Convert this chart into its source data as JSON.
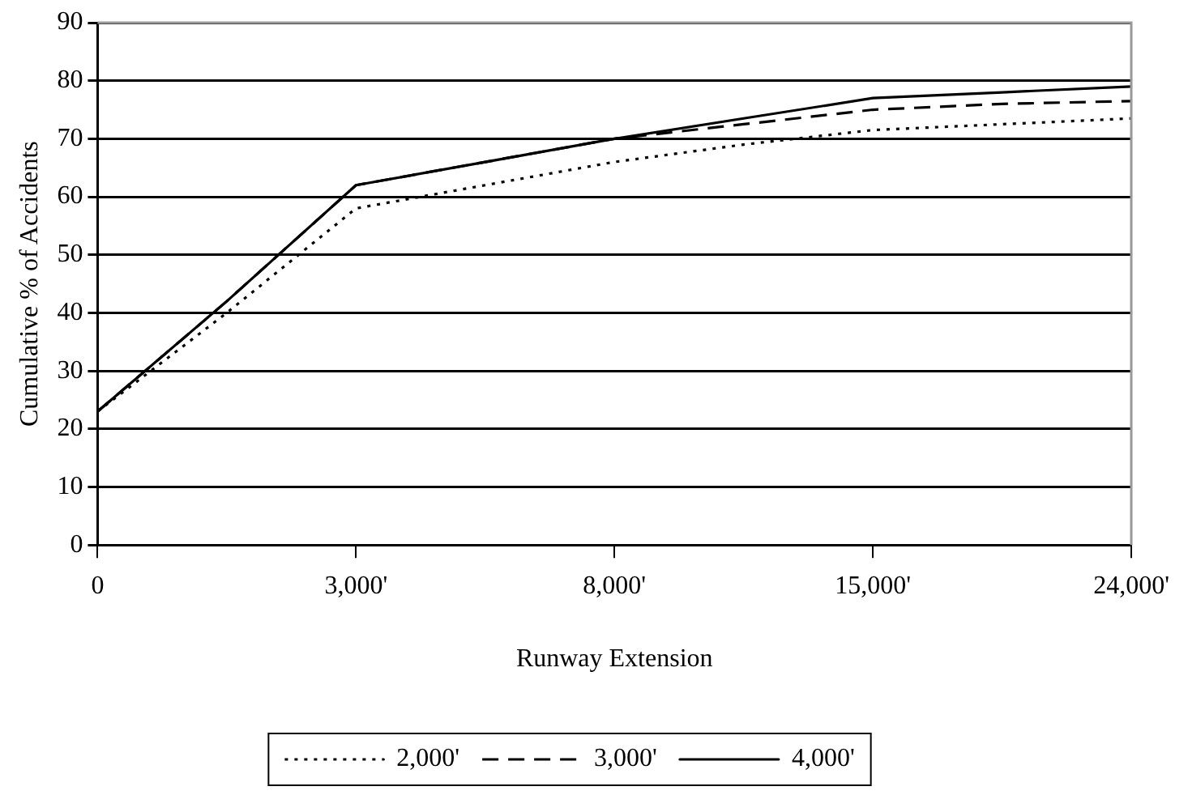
{
  "chart_data": {
    "type": "line",
    "xlabel": "Runway Extension",
    "ylabel": "Cumulative % of Accidents",
    "categories": [
      "0",
      null,
      "3,000'",
      null,
      "8,000'",
      null,
      "15,000'",
      null,
      "24,000'"
    ],
    "series": [
      {
        "name": "2,000'",
        "color": "#000000",
        "line_style": "dotted",
        "values": [
          23,
          40,
          58,
          62,
          66,
          69,
          71.5,
          72.5,
          73.5
        ]
      },
      {
        "name": "3,000'",
        "color": "#000000",
        "line_style": "dashed",
        "values": [
          23,
          42,
          62,
          66,
          70,
          72.5,
          75,
          76,
          76.5
        ]
      },
      {
        "name": "4,000'",
        "color": "#000000",
        "line_style": "solid",
        "values": [
          23,
          42,
          62,
          66,
          70,
          73.5,
          77,
          78,
          79
        ]
      }
    ],
    "ylim": [
      0,
      90
    ],
    "yticks": [
      0,
      10,
      20,
      30,
      40,
      50,
      60,
      70,
      80,
      90
    ],
    "grid": "y",
    "legend": "bottom",
    "marker": "none"
  }
}
